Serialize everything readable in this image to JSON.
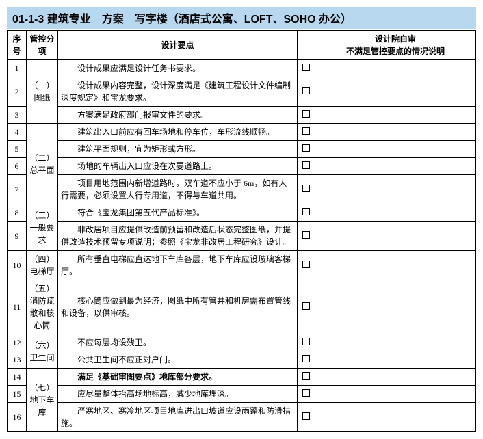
{
  "title": {
    "code": "01-1-3",
    "text": "建筑专业　方案　写字楼（酒店式公寓、LOFT、SOHO 办公）",
    "bg": "#b8d8f0",
    "fontsize": 16
  },
  "headers": {
    "seq": "序号",
    "cat": "管控分项",
    "desc": "设计要点",
    "check": "",
    "note": "设计院自审\n不满足管控要点的情况说明"
  },
  "categories": [
    {
      "label": "（一）图纸",
      "start": 1,
      "span": 3
    },
    {
      "label": "（二）总平面",
      "start": 4,
      "span": 4
    },
    {
      "label": "（三）一般要求",
      "start": 8,
      "span": 2
    },
    {
      "label": "（四）电梯厅",
      "start": 10,
      "span": 1
    },
    {
      "label": "（五）消防疏散和核心筒",
      "start": 11,
      "span": 1
    },
    {
      "label": "（六）卫生间",
      "start": 12,
      "span": 2
    },
    {
      "label": "（七）地下车库",
      "start": 14,
      "span": 3
    }
  ],
  "rows": [
    {
      "seq": 1,
      "desc": "设计成果应满足设计任务书要求。",
      "bold": false
    },
    {
      "seq": 2,
      "desc": "设计成果内容完整，设计深度满足《建筑工程设计文件编制深度规定》和宝龙要求。",
      "bold": false
    },
    {
      "seq": 3,
      "desc": "方案满足政府部门报审文件的要求。",
      "bold": false
    },
    {
      "seq": 4,
      "desc": "建筑出入口前应有回车场地和停车位，车形流线顺畅。",
      "bold": false
    },
    {
      "seq": 5,
      "desc": "建筑平面规则，宜为矩形或方形。",
      "bold": false
    },
    {
      "seq": 6,
      "desc": "场地的车辆出入口应设在次要道路上。",
      "bold": false
    },
    {
      "seq": 7,
      "desc": "项目用地范围内新增道路时，双车道不应小于 6m，如有人行需要，必须设置人行专用道，不得与车道共用。",
      "bold": false
    },
    {
      "seq": 8,
      "desc": "符合《宝龙集团第五代产品标准》。",
      "bold": false
    },
    {
      "seq": 9,
      "desc": "非改居项目应提供改造前预留和改造后状态完整图纸，并提供改造技术预留专项说明；参照《宝龙非改居工程研究》设计。",
      "bold": false
    },
    {
      "seq": 10,
      "desc": "所有垂直电梯应直达地下车库各层，地下车库应设玻璃客梯厅。",
      "bold": false
    },
    {
      "seq": 11,
      "desc": "核心筒应做到最为经济，图纸中所有管井和机房需布置管线和设备，以供审核。",
      "bold": false
    },
    {
      "seq": 12,
      "desc": "不应每层均设残卫。",
      "bold": false
    },
    {
      "seq": 13,
      "desc": "公共卫生间不应正对户门。",
      "bold": false
    },
    {
      "seq": 14,
      "desc": "满足《基础审图要点》地库部分要求。",
      "bold": true
    },
    {
      "seq": 15,
      "desc": "应尽量整体抬高场地标高，减少地库埋深。",
      "bold": false
    },
    {
      "seq": 16,
      "desc": "严寒地区、寒冷地区项目地库进出口坡道应设雨蓬和防滑措施。",
      "bold": false
    }
  ]
}
